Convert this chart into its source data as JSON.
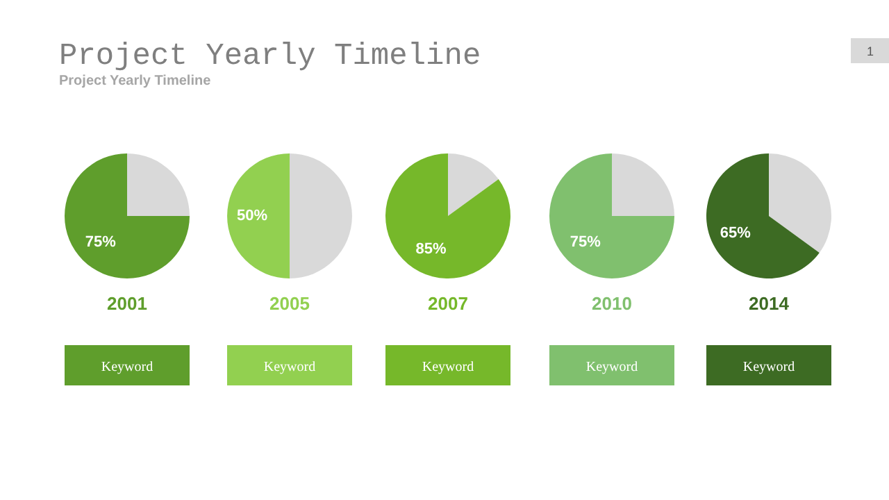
{
  "chart_data": [
    {
      "type": "pie",
      "title": "Project Yearly Timeline",
      "subtitle": "Project Yearly Timeline",
      "categories": [
        null,
        null
      ],
      "values": [
        25,
        75
      ],
      "colors": [
        "#d9d9d9",
        "#5f9e2c"
      ],
      "value_labels": [
        null,
        "75%"
      ],
      "xlabel": "2001",
      "annotations": [
        "Keyword",
        "1"
      ]
    },
    {
      "type": "pie",
      "categories": [
        null,
        null
      ],
      "values": [
        50,
        50
      ],
      "colors": [
        "#d9d9d9",
        "#92d050"
      ],
      "value_labels": [
        null,
        "50%"
      ],
      "xlabel": "2005",
      "annotations": [
        "Keyword"
      ]
    },
    {
      "type": "pie",
      "categories": [
        null,
        null
      ],
      "values": [
        15,
        85
      ],
      "colors": [
        "#d9d9d9",
        "#76b82a"
      ],
      "value_labels": [
        null,
        "85%"
      ],
      "xlabel": "2007",
      "annotations": [
        "Keyword"
      ]
    },
    {
      "type": "pie",
      "categories": [
        null,
        null
      ],
      "values": [
        25,
        75
      ],
      "colors": [
        "#d9d9d9",
        "#80c06e"
      ],
      "value_labels": [
        null,
        "75%"
      ],
      "xlabel": "2010",
      "annotations": [
        "Keyword"
      ]
    },
    {
      "type": "pie",
      "categories": [
        null,
        null
      ],
      "values": [
        35,
        65
      ],
      "colors": [
        "#d9d9d9",
        "#3d6b23"
      ],
      "value_labels": [
        null,
        "65%"
      ],
      "xlabel": "2014",
      "annotations": [
        "Keyword"
      ]
    }
  ]
}
